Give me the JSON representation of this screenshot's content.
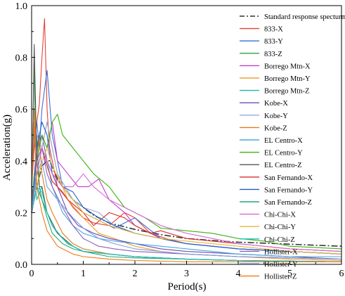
{
  "chart_data": {
    "type": "line",
    "xlabel": "Period(s)",
    "ylabel": "Acceleration(g)",
    "xlim": [
      0,
      6
    ],
    "ylim": [
      0,
      1.0
    ],
    "x_ticks": [
      "0",
      "1",
      "2",
      "3",
      "4",
      "5",
      "6"
    ],
    "y_ticks": [
      "0.0",
      "0.2",
      "0.4",
      "0.6",
      "0.8",
      "1.0"
    ],
    "legend_position": "top-right",
    "grid": false,
    "series": [
      {
        "name": "Standard response specturm",
        "color": "#333333",
        "dash": "dashdot",
        "width": 1.6,
        "x": [
          0.0,
          0.1,
          0.2,
          0.3,
          0.35,
          0.5,
          0.6,
          0.8,
          1.0,
          1.2,
          1.5,
          2.0,
          2.5,
          3.0,
          3.5,
          4.0,
          4.5,
          5.0,
          5.5,
          6.0
        ],
        "y": [
          0.2,
          0.3,
          0.38,
          0.4,
          0.4,
          0.33,
          0.3,
          0.25,
          0.22,
          0.19,
          0.16,
          0.135,
          0.115,
          0.1,
          0.092,
          0.086,
          0.082,
          0.078,
          0.074,
          0.07
        ]
      },
      {
        "name": "833-X",
        "color": "#e8413a",
        "x": [
          0,
          0.05,
          0.1,
          0.15,
          0.2,
          0.25,
          0.3,
          0.35,
          0.4,
          0.5,
          0.6,
          0.8,
          1.0,
          1.2,
          1.5,
          1.8,
          2.0,
          2.3,
          2.6,
          3.0,
          3.5,
          4.0,
          5.0,
          6.0
        ],
        "y": [
          0.3,
          0.45,
          0.55,
          0.62,
          0.8,
          0.95,
          0.6,
          0.45,
          0.4,
          0.3,
          0.28,
          0.22,
          0.18,
          0.16,
          0.15,
          0.2,
          0.18,
          0.12,
          0.1,
          0.08,
          0.07,
          0.06,
          0.05,
          0.04
        ]
      },
      {
        "name": "833-Y",
        "color": "#3a6fd8",
        "x": [
          0,
          0.05,
          0.1,
          0.15,
          0.2,
          0.3,
          0.4,
          0.5,
          0.6,
          0.8,
          1.0,
          1.3,
          1.6,
          2.0,
          2.5,
          3.0,
          3.5,
          4.0,
          5.0,
          6.0
        ],
        "y": [
          0.3,
          0.5,
          0.55,
          0.45,
          0.6,
          0.75,
          0.5,
          0.4,
          0.3,
          0.25,
          0.2,
          0.17,
          0.14,
          0.18,
          0.1,
          0.08,
          0.07,
          0.06,
          0.05,
          0.04
        ]
      },
      {
        "name": "833-Z",
        "color": "#2ea043",
        "x": [
          0,
          0.05,
          0.08,
          0.1,
          0.15,
          0.2,
          0.3,
          0.4,
          0.5,
          0.7,
          1.0,
          1.5,
          2.0,
          3.0,
          4.0,
          6.0
        ],
        "y": [
          0.25,
          0.8,
          0.35,
          0.5,
          0.3,
          0.25,
          0.2,
          0.15,
          0.12,
          0.08,
          0.05,
          0.04,
          0.03,
          0.02,
          0.015,
          0.01
        ]
      },
      {
        "name": "Borrego Mtn-X",
        "color": "#c63bcf",
        "x": [
          0,
          0.1,
          0.2,
          0.3,
          0.4,
          0.5,
          0.7,
          0.9,
          1.1,
          1.3,
          1.5,
          1.8,
          2.0,
          2.5,
          3.0,
          4.0,
          5.0,
          6.0
        ],
        "y": [
          0.25,
          0.4,
          0.5,
          0.45,
          0.55,
          0.4,
          0.35,
          0.3,
          0.3,
          0.33,
          0.25,
          0.2,
          0.15,
          0.1,
          0.08,
          0.06,
          0.05,
          0.04
        ]
      },
      {
        "name": "Borrego Mtn-Y",
        "color": "#f0a030",
        "x": [
          0,
          0.1,
          0.2,
          0.3,
          0.4,
          0.5,
          0.7,
          1.0,
          1.3,
          1.6,
          2.0,
          2.5,
          3.0,
          4.0,
          5.0,
          6.0
        ],
        "y": [
          0.2,
          0.35,
          0.45,
          0.55,
          0.45,
          0.35,
          0.25,
          0.18,
          0.12,
          0.1,
          0.07,
          0.05,
          0.04,
          0.03,
          0.02,
          0.015
        ]
      },
      {
        "name": "Borrego Mtn-Z",
        "color": "#1fb7a6",
        "x": [
          0,
          0.05,
          0.1,
          0.2,
          0.3,
          0.4,
          0.6,
          0.8,
          1.0,
          1.5,
          2.0,
          3.0,
          4.0,
          6.0
        ],
        "y": [
          0.2,
          0.35,
          0.25,
          0.3,
          0.2,
          0.15,
          0.1,
          0.07,
          0.05,
          0.04,
          0.03,
          0.02,
          0.015,
          0.01
        ]
      },
      {
        "name": "Kobe-X",
        "color": "#6b4bb4",
        "x": [
          0,
          0.1,
          0.2,
          0.3,
          0.4,
          0.5,
          0.7,
          0.9,
          1.2,
          1.5,
          2.0,
          2.5,
          3.0,
          4.0,
          5.0,
          6.0
        ],
        "y": [
          0.2,
          0.45,
          0.5,
          0.4,
          0.35,
          0.3,
          0.2,
          0.15,
          0.12,
          0.1,
          0.08,
          0.06,
          0.05,
          0.04,
          0.03,
          0.02
        ]
      },
      {
        "name": "Kobe-Y",
        "color": "#9aa8d8",
        "x": [
          0,
          0.1,
          0.2,
          0.3,
          0.5,
          0.8,
          1.0,
          1.3,
          1.6,
          2.0,
          2.5,
          3.0,
          4.0,
          5.0,
          6.0
        ],
        "y": [
          0.2,
          0.5,
          0.45,
          0.55,
          0.35,
          0.25,
          0.22,
          0.2,
          0.15,
          0.12,
          0.1,
          0.08,
          0.06,
          0.05,
          0.04
        ]
      },
      {
        "name": "Kobe-Z",
        "color": "#e07b20",
        "x": [
          0,
          0.05,
          0.1,
          0.15,
          0.2,
          0.3,
          0.4,
          0.6,
          0.8,
          1.0,
          1.5,
          2.0,
          3.0,
          4.0,
          6.0
        ],
        "y": [
          0.3,
          0.6,
          0.4,
          0.5,
          0.35,
          0.25,
          0.2,
          0.12,
          0.08,
          0.06,
          0.04,
          0.03,
          0.02,
          0.015,
          0.01
        ]
      },
      {
        "name": "EL Centro-X",
        "color": "#4aa8e0",
        "x": [
          0,
          0.1,
          0.2,
          0.3,
          0.4,
          0.6,
          0.8,
          1.0,
          1.3,
          1.6,
          2.0,
          2.5,
          3.0,
          3.5,
          4.0,
          5.0,
          6.0
        ],
        "y": [
          0.2,
          0.35,
          0.45,
          0.4,
          0.3,
          0.2,
          0.15,
          0.12,
          0.1,
          0.09,
          0.08,
          0.07,
          0.06,
          0.05,
          0.04,
          0.03,
          0.03
        ]
      },
      {
        "name": "EL Centro-Y",
        "color": "#3cb30f",
        "x": [
          0,
          0.1,
          0.2,
          0.3,
          0.4,
          0.5,
          0.6,
          0.8,
          1.0,
          1.2,
          1.5,
          1.8,
          2.0,
          2.2,
          2.5,
          3.0,
          3.5,
          4.0,
          4.5,
          5.0,
          6.0
        ],
        "y": [
          0.25,
          0.4,
          0.5,
          0.45,
          0.55,
          0.58,
          0.5,
          0.45,
          0.4,
          0.35,
          0.3,
          0.22,
          0.2,
          0.18,
          0.14,
          0.13,
          0.12,
          0.1,
          0.09,
          0.07,
          0.06
        ]
      },
      {
        "name": "EL Centro-Z",
        "color": "#555555",
        "x": [
          0,
          0.05,
          0.1,
          0.15,
          0.2,
          0.3,
          0.5,
          0.8,
          1.0,
          1.5,
          2.0,
          3.0,
          4.0,
          6.0
        ],
        "y": [
          0.2,
          0.85,
          0.4,
          0.3,
          0.3,
          0.2,
          0.12,
          0.07,
          0.05,
          0.04,
          0.03,
          0.02,
          0.015,
          0.01
        ]
      },
      {
        "name": "San Fernando-X",
        "color": "#d92f2f",
        "x": [
          0,
          0.1,
          0.2,
          0.3,
          0.4,
          0.5,
          0.7,
          1.0,
          1.2,
          1.5,
          1.8,
          2.0,
          2.3,
          2.5,
          3.0,
          3.5,
          4.0,
          5.0,
          6.0
        ],
        "y": [
          0.25,
          0.4,
          0.45,
          0.38,
          0.32,
          0.3,
          0.25,
          0.2,
          0.15,
          0.2,
          0.18,
          0.15,
          0.12,
          0.13,
          0.1,
          0.09,
          0.08,
          0.06,
          0.05
        ]
      },
      {
        "name": "San Fernando-Y",
        "color": "#1c5fc9",
        "x": [
          0,
          0.1,
          0.2,
          0.3,
          0.4,
          0.6,
          0.8,
          1.0,
          1.3,
          1.6,
          2.0,
          2.5,
          3.0,
          3.5,
          4.0,
          5.0,
          6.0
        ],
        "y": [
          0.2,
          0.45,
          0.55,
          0.5,
          0.35,
          0.3,
          0.28,
          0.22,
          0.18,
          0.15,
          0.12,
          0.1,
          0.08,
          0.07,
          0.06,
          0.05,
          0.04
        ]
      },
      {
        "name": "San Fernando-Z",
        "color": "#27a87a",
        "x": [
          0,
          0.05,
          0.1,
          0.2,
          0.3,
          0.4,
          0.6,
          0.8,
          1.0,
          1.5,
          2.0,
          3.0,
          4.0,
          6.0
        ],
        "y": [
          0.2,
          0.35,
          0.3,
          0.25,
          0.18,
          0.12,
          0.08,
          0.06,
          0.05,
          0.03,
          0.025,
          0.02,
          0.015,
          0.01
        ]
      },
      {
        "name": "Chi-Chi-X",
        "color": "#d36ad8",
        "x": [
          0,
          0.1,
          0.2,
          0.3,
          0.4,
          0.6,
          0.8,
          1.0,
          1.2,
          1.5,
          2.0,
          2.5,
          3.0,
          3.5,
          4.0,
          5.0,
          6.0
        ],
        "y": [
          0.2,
          0.35,
          0.45,
          0.4,
          0.35,
          0.3,
          0.3,
          0.35,
          0.3,
          0.25,
          0.2,
          0.15,
          0.12,
          0.1,
          0.08,
          0.06,
          0.05
        ]
      },
      {
        "name": "Chi-Chi-Y",
        "color": "#e8b73a",
        "x": [
          0,
          0.1,
          0.2,
          0.3,
          0.4,
          0.6,
          0.8,
          1.0,
          1.5,
          2.0,
          2.5,
          3.0,
          4.0,
          5.0,
          6.0
        ],
        "y": [
          0.2,
          0.3,
          0.4,
          0.45,
          0.38,
          0.3,
          0.25,
          0.2,
          0.15,
          0.12,
          0.1,
          0.09,
          0.07,
          0.05,
          0.04
        ]
      },
      {
        "name": "Chi-Chi-Z",
        "color": "#19c3c3",
        "x": [
          0,
          0.1,
          0.2,
          0.3,
          0.4,
          0.6,
          0.8,
          1.0,
          1.5,
          2.0,
          3.0,
          4.0,
          6.0
        ],
        "y": [
          0.2,
          0.3,
          0.28,
          0.2,
          0.15,
          0.1,
          0.07,
          0.05,
          0.04,
          0.03,
          0.02,
          0.015,
          0.01
        ]
      },
      {
        "name": "Hollister-X",
        "color": "#8a60b8",
        "x": [
          0,
          0.1,
          0.2,
          0.3,
          0.4,
          0.6,
          0.8,
          1.0,
          1.3,
          1.6,
          2.0,
          3.0,
          4.0,
          5.0,
          6.0
        ],
        "y": [
          0.2,
          0.4,
          0.45,
          0.35,
          0.3,
          0.22,
          0.15,
          0.1,
          0.07,
          0.06,
          0.05,
          0.04,
          0.03,
          0.025,
          0.02
        ]
      },
      {
        "name": "Hollister-Y",
        "color": "#7f9ad8",
        "x": [
          0,
          0.1,
          0.2,
          0.3,
          0.5,
          0.8,
          1.0,
          1.3,
          1.6,
          2.0,
          3.0,
          4.0,
          6.0
        ],
        "y": [
          0.2,
          0.35,
          0.4,
          0.3,
          0.25,
          0.18,
          0.14,
          0.1,
          0.08,
          0.06,
          0.04,
          0.03,
          0.02
        ]
      },
      {
        "name": "Hollister-Z",
        "color": "#f07a18",
        "x": [
          0,
          0.05,
          0.1,
          0.15,
          0.2,
          0.3,
          0.5,
          0.8,
          1.0,
          1.5,
          2.0,
          3.0,
          4.0,
          6.0
        ],
        "y": [
          0.3,
          0.55,
          0.3,
          0.25,
          0.2,
          0.13,
          0.07,
          0.04,
          0.03,
          0.02,
          0.015,
          0.01,
          0.01,
          0.01
        ]
      }
    ]
  }
}
